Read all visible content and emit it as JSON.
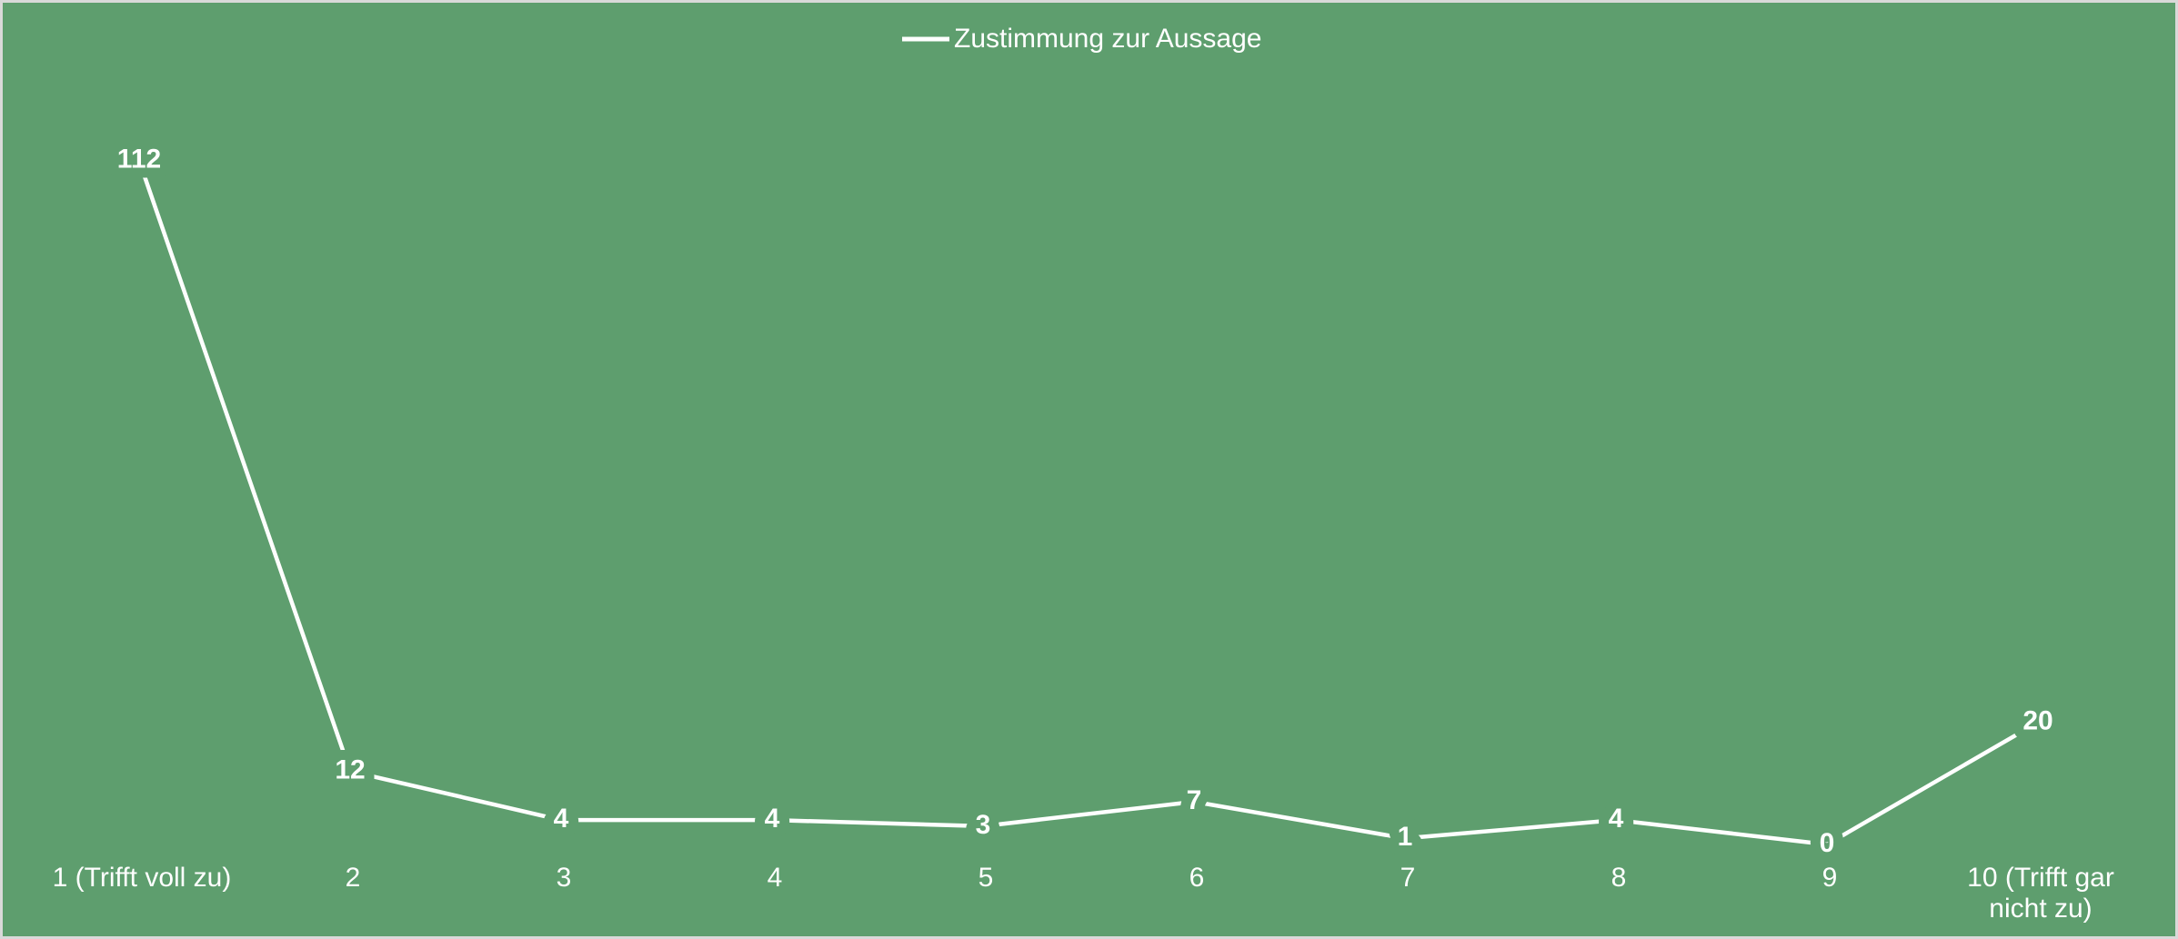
{
  "chart_data": {
    "type": "line",
    "categories": [
      "1 (Trifft voll zu)",
      "2",
      "3",
      "4",
      "5",
      "6",
      "7",
      "8",
      "9",
      "10 (Trifft gar nicht zu)"
    ],
    "series": [
      {
        "name": "Zustimmung zur Aussage",
        "color": "#ffffff",
        "values": [
          112,
          12,
          4,
          4,
          3,
          7,
          1,
          4,
          0,
          20
        ]
      }
    ],
    "ylim": [
      0,
      120
    ],
    "background": "#5e9e6e",
    "legend": "top"
  }
}
